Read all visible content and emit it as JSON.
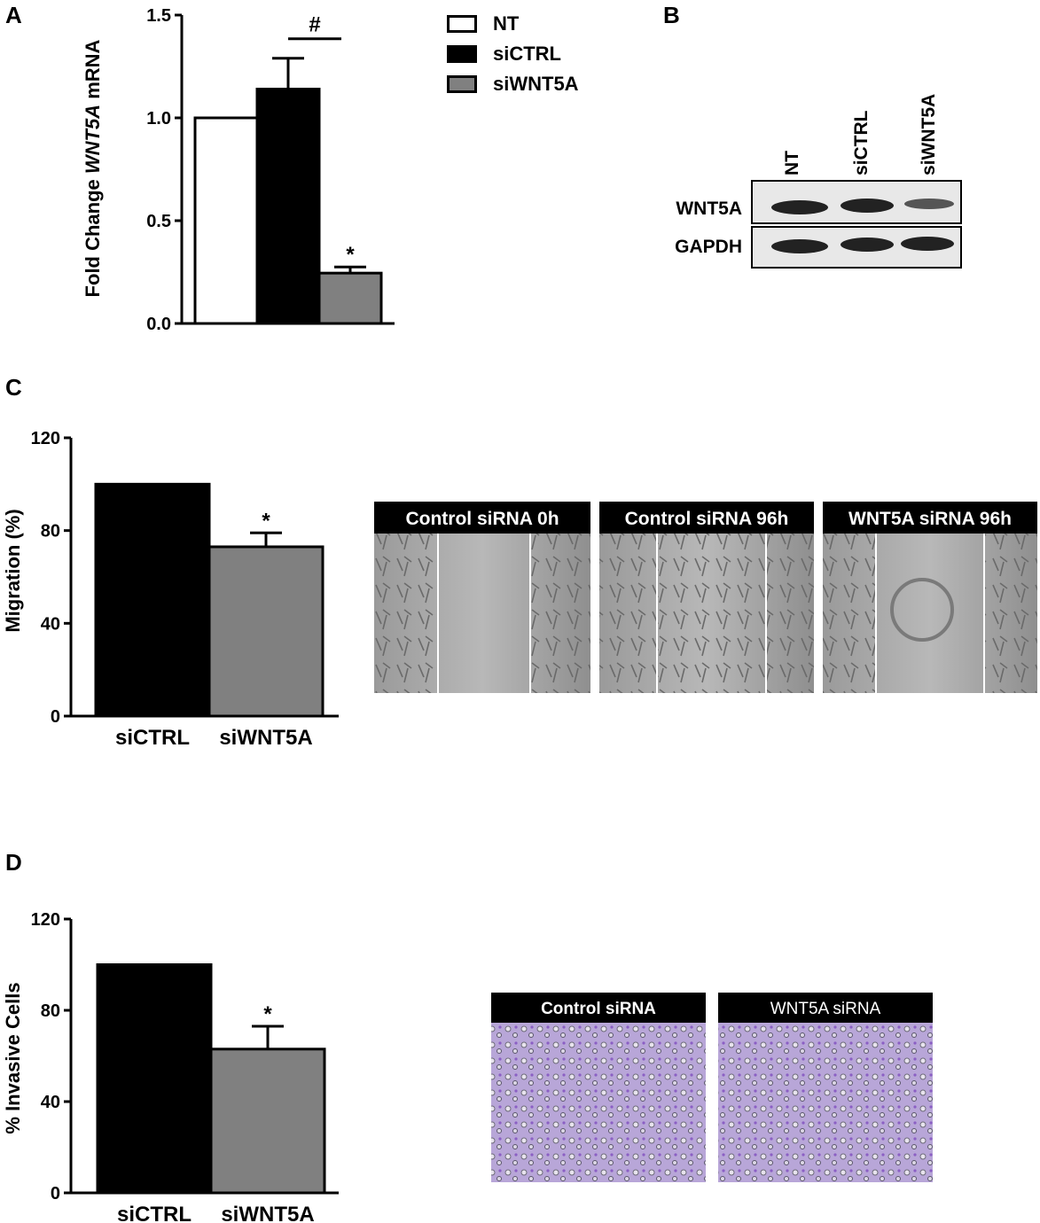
{
  "panels": {
    "A": "A",
    "B": "B",
    "C": "C",
    "D": "D"
  },
  "chart_data": [
    {
      "panel": "A",
      "type": "bar",
      "categories": [
        "NT",
        "siCTRL",
        "siWNT5A"
      ],
      "values": [
        1.0,
        1.14,
        0.245
      ],
      "error": [
        0,
        0.15,
        0.03
      ],
      "colors": [
        "#ffffff",
        "#000000",
        "#808080"
      ],
      "ylabel_pre": "Fold Change ",
      "ylabel_italic": "WNT5A",
      "ylabel_post": " mRNA",
      "ylim": [
        0,
        1.5
      ],
      "yticks": [
        "0.0",
        "0.5",
        "1.0",
        "1.5"
      ],
      "annotations": {
        "hash": "#",
        "star": "*"
      },
      "legend": [
        "NT",
        "siCTRL",
        "siWNT5A"
      ],
      "legend_position": "right"
    },
    {
      "panel": "C",
      "type": "bar",
      "categories": [
        "siCTRL",
        "siWNT5A"
      ],
      "values": [
        100,
        73
      ],
      "error": [
        0,
        6
      ],
      "colors": [
        "#000000",
        "#808080"
      ],
      "ylabel": "Migration (%)",
      "ylim": [
        0,
        120
      ],
      "yticks": [
        "0",
        "40",
        "80",
        "120"
      ],
      "annotations": {
        "star": "*"
      }
    },
    {
      "panel": "D",
      "type": "bar",
      "categories": [
        "siCTRL",
        "siWNT5A"
      ],
      "values": [
        100,
        63
      ],
      "error": [
        0,
        10
      ],
      "colors": [
        "#000000",
        "#808080"
      ],
      "ylabel": "% Invasive Cells",
      "ylim": [
        0,
        120
      ],
      "yticks": [
        "0",
        "40",
        "80",
        "120"
      ],
      "annotations": {
        "star": "*"
      }
    }
  ],
  "blot": {
    "lanes": [
      "NT",
      "siCTRL",
      "siWNT5A"
    ],
    "rows": [
      "WNT5A",
      "GAPDH"
    ]
  },
  "migration_images": [
    "Control siRNA 0h",
    "Control siRNA 96h",
    "WNT5A siRNA 96h"
  ],
  "invasion_images": [
    "Control siRNA",
    "WNT5A siRNA"
  ]
}
